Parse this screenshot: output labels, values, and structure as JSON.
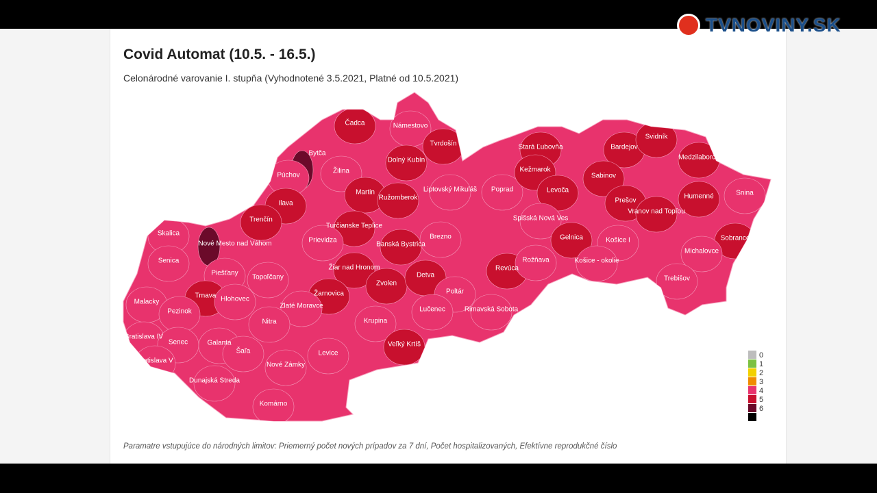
{
  "header": {
    "title": "Covid Automat (10.5. - 16.5.)",
    "subtitle": "Celonárodné varovanie I. stupňa (Vyhodnotené 3.5.2021, Platné od 10.5.2021)"
  },
  "logo": "TVNOVINY.SK",
  "footnote": "Paramatre vstupujúce do národných limitov: Priemerný počet nových prípadov za 7 dní, Počet hospitalizovaných, Efektívne reprodukčné číslo",
  "legend": {
    "items": [
      {
        "value": 0,
        "color": "#bdbdbd"
      },
      {
        "value": 1,
        "color": "#7cc142"
      },
      {
        "value": 2,
        "color": "#f2d100"
      },
      {
        "value": 3,
        "color": "#f08c00"
      },
      {
        "value": 4,
        "color": "#e8336d"
      },
      {
        "value": 5,
        "color": "#c8102e"
      },
      {
        "value": 6,
        "color": "#6b0a2a"
      }
    ]
  },
  "districts": [
    {
      "name": "Čadca",
      "level": 5
    },
    {
      "name": "Námestovo",
      "level": 4
    },
    {
      "name": "Tvrdošín",
      "level": 5
    },
    {
      "name": "Bytča",
      "level": 6
    },
    {
      "name": "Žilina",
      "level": 4
    },
    {
      "name": "Dolný Kubín",
      "level": 5
    },
    {
      "name": "Púchov",
      "level": 4
    },
    {
      "name": "Martin",
      "level": 5
    },
    {
      "name": "Ružomberok",
      "level": 5
    },
    {
      "name": "Liptovský Mikuláš",
      "level": 4
    },
    {
      "name": "Poprad",
      "level": 4
    },
    {
      "name": "Stará Ľubovňa",
      "level": 5
    },
    {
      "name": "Kežmarok",
      "level": 5
    },
    {
      "name": "Bardejov",
      "level": 5
    },
    {
      "name": "Svidník",
      "level": 5
    },
    {
      "name": "Medzilaborce",
      "level": 5
    },
    {
      "name": "Sabinov",
      "level": 5
    },
    {
      "name": "Levoča",
      "level": 5
    },
    {
      "name": "Humenné",
      "level": 5
    },
    {
      "name": "Prešov",
      "level": 5
    },
    {
      "name": "Snina",
      "level": 4
    },
    {
      "name": "Vranov nad Topľou",
      "level": 5
    },
    {
      "name": "Ilava",
      "level": 5
    },
    {
      "name": "Trenčín",
      "level": 5
    },
    {
      "name": "Turčianske Teplice",
      "level": 5
    },
    {
      "name": "Spišská Nová Ves",
      "level": 4
    },
    {
      "name": "Skalica",
      "level": 4
    },
    {
      "name": "Nové Mesto nad Váhom",
      "level": 6
    },
    {
      "name": "Prievidza",
      "level": 4
    },
    {
      "name": "Banská Bystrica",
      "level": 5
    },
    {
      "name": "Brezno",
      "level": 4
    },
    {
      "name": "Gelnica",
      "level": 5
    },
    {
      "name": "Košice I",
      "level": 4
    },
    {
      "name": "Sobrance",
      "level": 5
    },
    {
      "name": "Senica",
      "level": 4
    },
    {
      "name": "Revúca",
      "level": 5
    },
    {
      "name": "Rožňava",
      "level": 4
    },
    {
      "name": "Košice - okolie",
      "level": 4
    },
    {
      "name": "Michalovce",
      "level": 4
    },
    {
      "name": "Piešťany",
      "level": 4
    },
    {
      "name": "Topoľčany",
      "level": 4
    },
    {
      "name": "Žiar nad Hronom",
      "level": 5
    },
    {
      "name": "Zvolen",
      "level": 5
    },
    {
      "name": "Detva",
      "level": 5
    },
    {
      "name": "Trebišov",
      "level": 4
    },
    {
      "name": "Malacky",
      "level": 4
    },
    {
      "name": "Trnava",
      "level": 5
    },
    {
      "name": "Hlohovec",
      "level": 4
    },
    {
      "name": "Žarnovica",
      "level": 5
    },
    {
      "name": "Poltár",
      "level": 4
    },
    {
      "name": "Zlaté Moravce",
      "level": 4
    },
    {
      "name": "Lučenec",
      "level": 4
    },
    {
      "name": "Rimavská Sobota",
      "level": 4
    },
    {
      "name": "Pezinok",
      "level": 4
    },
    {
      "name": "Nitra",
      "level": 4
    },
    {
      "name": "Krupina",
      "level": 4
    },
    {
      "name": "Bratislava IV",
      "level": 4
    },
    {
      "name": "Senec",
      "level": 4
    },
    {
      "name": "Galanta",
      "level": 4
    },
    {
      "name": "Šaľa",
      "level": 4
    },
    {
      "name": "Veľký Krtíš",
      "level": 5
    },
    {
      "name": "Levice",
      "level": 4
    },
    {
      "name": "Bratislava V",
      "level": 4
    },
    {
      "name": "Nové Zámky",
      "level": 4
    },
    {
      "name": "Dunajská Streda",
      "level": 4
    },
    {
      "name": "Komárno",
      "level": 4
    }
  ]
}
